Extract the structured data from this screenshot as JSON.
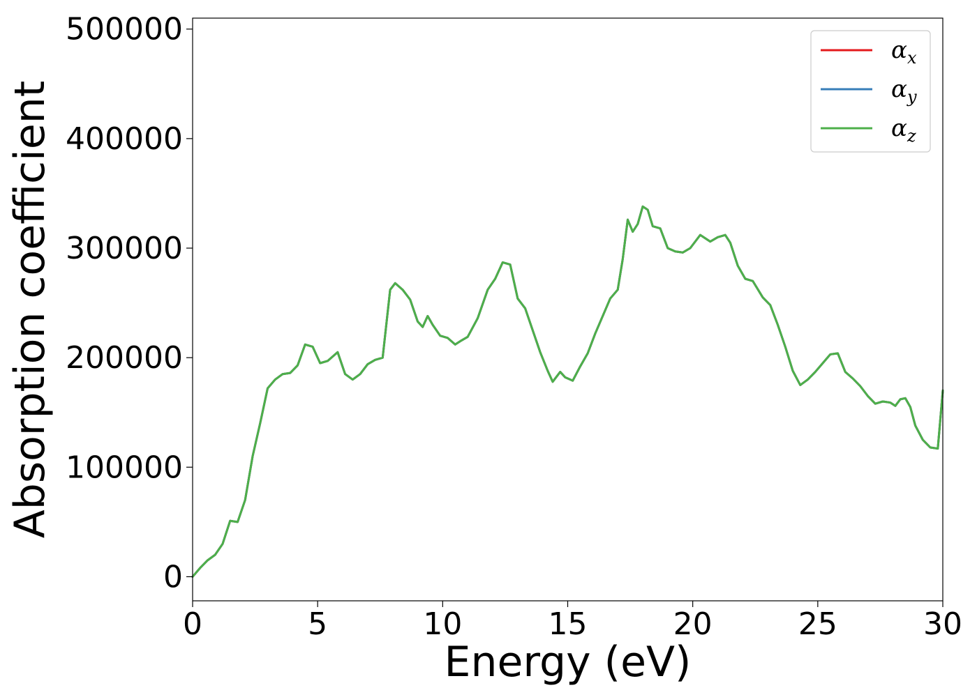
{
  "chart_data": {
    "type": "line",
    "title": "",
    "xlabel": "Energy (eV)",
    "ylabel": "Absorption coefficient",
    "xlim": [
      0,
      30
    ],
    "ylim": [
      -22000,
      510000
    ],
    "xticks": [
      0,
      5,
      10,
      15,
      20,
      25,
      30
    ],
    "yticks": [
      0,
      100000,
      200000,
      300000,
      400000,
      500000
    ],
    "xtick_labels": [
      "0",
      "5",
      "10",
      "15",
      "20",
      "25",
      "30"
    ],
    "ytick_labels": [
      "0",
      "100000",
      "200000",
      "300000",
      "400000",
      "500000"
    ],
    "grid": false,
    "legend_position": "top-right",
    "colors": {
      "alpha_x": "#e41a1c",
      "alpha_y": "#377eb8",
      "alpha_z": "#4daf4a"
    },
    "legend": [
      {
        "key": "alpha_x",
        "symbol": "α",
        "sub": "x"
      },
      {
        "key": "alpha_y",
        "symbol": "α",
        "sub": "y"
      },
      {
        "key": "alpha_z",
        "symbol": "α",
        "sub": "z"
      }
    ],
    "x": [
      0,
      0.3,
      0.6,
      0.9,
      1.2,
      1.5,
      1.8,
      2.1,
      2.4,
      2.7,
      3.0,
      3.3,
      3.6,
      3.9,
      4.2,
      4.5,
      4.8,
      5.1,
      5.4,
      5.8,
      6.1,
      6.4,
      6.7,
      7.0,
      7.3,
      7.6,
      7.9,
      8.1,
      8.4,
      8.7,
      9.0,
      9.2,
      9.4,
      9.6,
      9.9,
      10.2,
      10.5,
      10.7,
      11.0,
      11.4,
      11.8,
      12.1,
      12.4,
      12.7,
      13.0,
      13.3,
      13.6,
      13.9,
      14.2,
      14.4,
      14.7,
      14.9,
      15.2,
      15.5,
      15.8,
      16.1,
      16.4,
      16.7,
      17.0,
      17.2,
      17.4,
      17.6,
      17.8,
      18.0,
      18.2,
      18.4,
      18.7,
      19.0,
      19.3,
      19.6,
      19.9,
      20.3,
      20.7,
      21.0,
      21.3,
      21.5,
      21.8,
      22.1,
      22.4,
      22.8,
      23.1,
      23.4,
      23.7,
      24.0,
      24.3,
      24.6,
      24.9,
      25.2,
      25.5,
      25.8,
      26.1,
      26.4,
      26.7,
      27.0,
      27.3,
      27.6,
      27.9,
      28.1,
      28.3,
      28.5,
      28.7,
      28.9,
      29.2,
      29.5,
      29.8,
      30.0
    ],
    "series": [
      {
        "key": "alpha_x",
        "values": [
          0,
          8000,
          15000,
          20000,
          30000,
          51000,
          50000,
          70000,
          110000,
          140000,
          172000,
          180000,
          185000,
          186000,
          193000,
          212000,
          210000,
          195000,
          197000,
          205000,
          185000,
          180000,
          185000,
          194000,
          198000,
          200000,
          262000,
          268000,
          262000,
          253000,
          233000,
          228000,
          238000,
          230000,
          220000,
          218000,
          212000,
          215000,
          219000,
          236000,
          262000,
          272000,
          287000,
          285000,
          254000,
          245000,
          225000,
          205000,
          188000,
          178000,
          187000,
          182000,
          179000,
          192000,
          204000,
          222000,
          238000,
          254000,
          262000,
          290000,
          326000,
          315000,
          322000,
          338000,
          335000,
          320000,
          318000,
          300000,
          297000,
          296000,
          300000,
          312000,
          306000,
          310000,
          312000,
          305000,
          284000,
          272000,
          270000,
          255000,
          248000,
          230000,
          210000,
          188000,
          175000,
          180000,
          187000,
          195000,
          203000,
          204000,
          187000,
          181000,
          174000,
          165000,
          158000,
          160000,
          159000,
          156000,
          162000,
          163000,
          155000,
          138000,
          125000,
          118000,
          117000,
          170000
        ]
      },
      {
        "key": "alpha_y",
        "values": [
          0,
          8000,
          15000,
          20000,
          30000,
          51000,
          50000,
          70000,
          110000,
          140000,
          172000,
          180000,
          185000,
          186000,
          193000,
          212000,
          210000,
          195000,
          197000,
          205000,
          185000,
          180000,
          185000,
          194000,
          198000,
          200000,
          262000,
          268000,
          262000,
          253000,
          233000,
          228000,
          238000,
          230000,
          220000,
          218000,
          212000,
          215000,
          219000,
          236000,
          262000,
          272000,
          287000,
          285000,
          254000,
          245000,
          225000,
          205000,
          188000,
          178000,
          187000,
          182000,
          179000,
          192000,
          204000,
          222000,
          238000,
          254000,
          262000,
          290000,
          326000,
          315000,
          322000,
          338000,
          335000,
          320000,
          318000,
          300000,
          297000,
          296000,
          300000,
          312000,
          306000,
          310000,
          312000,
          305000,
          284000,
          272000,
          270000,
          255000,
          248000,
          230000,
          210000,
          188000,
          175000,
          180000,
          187000,
          195000,
          203000,
          204000,
          187000,
          181000,
          174000,
          165000,
          158000,
          160000,
          159000,
          156000,
          162000,
          163000,
          155000,
          138000,
          125000,
          118000,
          117000,
          170000
        ]
      },
      {
        "key": "alpha_z",
        "values": [
          0,
          8000,
          15000,
          20000,
          30000,
          51000,
          50000,
          70000,
          110000,
          140000,
          172000,
          180000,
          185000,
          186000,
          193000,
          212000,
          210000,
          195000,
          197000,
          205000,
          185000,
          180000,
          185000,
          194000,
          198000,
          200000,
          262000,
          268000,
          262000,
          253000,
          233000,
          228000,
          238000,
          230000,
          220000,
          218000,
          212000,
          215000,
          219000,
          236000,
          262000,
          272000,
          287000,
          285000,
          254000,
          245000,
          225000,
          205000,
          188000,
          178000,
          187000,
          182000,
          179000,
          192000,
          204000,
          222000,
          238000,
          254000,
          262000,
          290000,
          326000,
          315000,
          322000,
          338000,
          335000,
          320000,
          318000,
          300000,
          297000,
          296000,
          300000,
          312000,
          306000,
          310000,
          312000,
          305000,
          284000,
          272000,
          270000,
          255000,
          248000,
          230000,
          210000,
          188000,
          175000,
          180000,
          187000,
          195000,
          203000,
          204000,
          187000,
          181000,
          174000,
          165000,
          158000,
          160000,
          159000,
          156000,
          162000,
          163000,
          155000,
          138000,
          125000,
          118000,
          117000,
          170000
        ]
      }
    ]
  }
}
